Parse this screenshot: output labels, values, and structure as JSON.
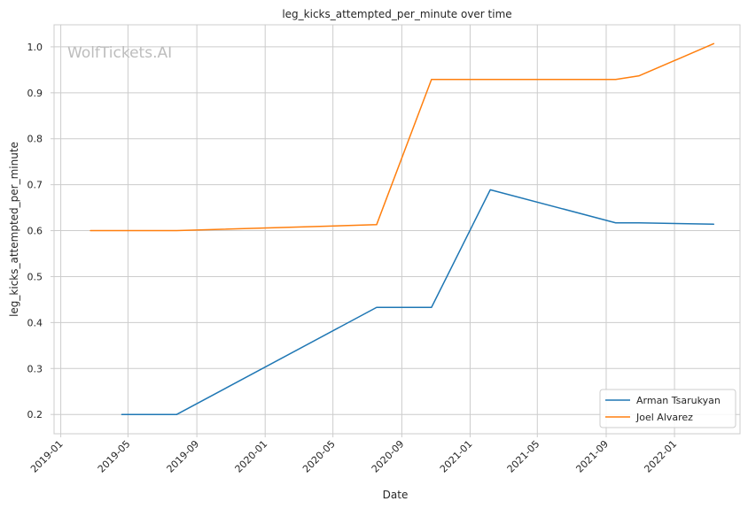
{
  "chart_data": {
    "type": "line",
    "title": "leg_kicks_attempted_per_minute over time",
    "xlabel": "Date",
    "ylabel": "leg_kicks_attempted_per_minute",
    "watermark": "WolfTickets.AI",
    "x_axis_type": "date",
    "xlim": [
      "2018-12-20",
      "2022-04-28"
    ],
    "ylim": [
      0.158,
      1.048
    ],
    "x_ticks": [
      "2019-01",
      "2019-05",
      "2019-09",
      "2020-01",
      "2020-05",
      "2020-09",
      "2021-01",
      "2021-05",
      "2021-09",
      "2022-01"
    ],
    "y_ticks": [
      0.2,
      0.3,
      0.4,
      0.5,
      0.6,
      0.7,
      0.8,
      0.9,
      1.0
    ],
    "grid": true,
    "legend_position": "bottom-right",
    "series": [
      {
        "name": "Arman Tsarukyan",
        "color": "#1f77b4",
        "points": [
          {
            "x": "2019-04-20",
            "y": 0.2
          },
          {
            "x": "2019-07-27",
            "y": 0.2
          },
          {
            "x": "2020-07-18",
            "y": 0.433
          },
          {
            "x": "2020-10-24",
            "y": 0.433
          },
          {
            "x": "2021-02-06",
            "y": 0.689
          },
          {
            "x": "2021-09-18",
            "y": 0.617
          },
          {
            "x": "2021-10-30",
            "y": 0.617
          },
          {
            "x": "2022-03-12",
            "y": 0.614
          }
        ]
      },
      {
        "name": "Joel Alvarez",
        "color": "#ff7f0e",
        "points": [
          {
            "x": "2019-02-23",
            "y": 0.6
          },
          {
            "x": "2019-07-27",
            "y": 0.6
          },
          {
            "x": "2020-07-18",
            "y": 0.613
          },
          {
            "x": "2020-10-24",
            "y": 0.929
          },
          {
            "x": "2021-09-18",
            "y": 0.929
          },
          {
            "x": "2021-10-30",
            "y": 0.937
          },
          {
            "x": "2022-03-12",
            "y": 1.007
          }
        ]
      }
    ]
  }
}
